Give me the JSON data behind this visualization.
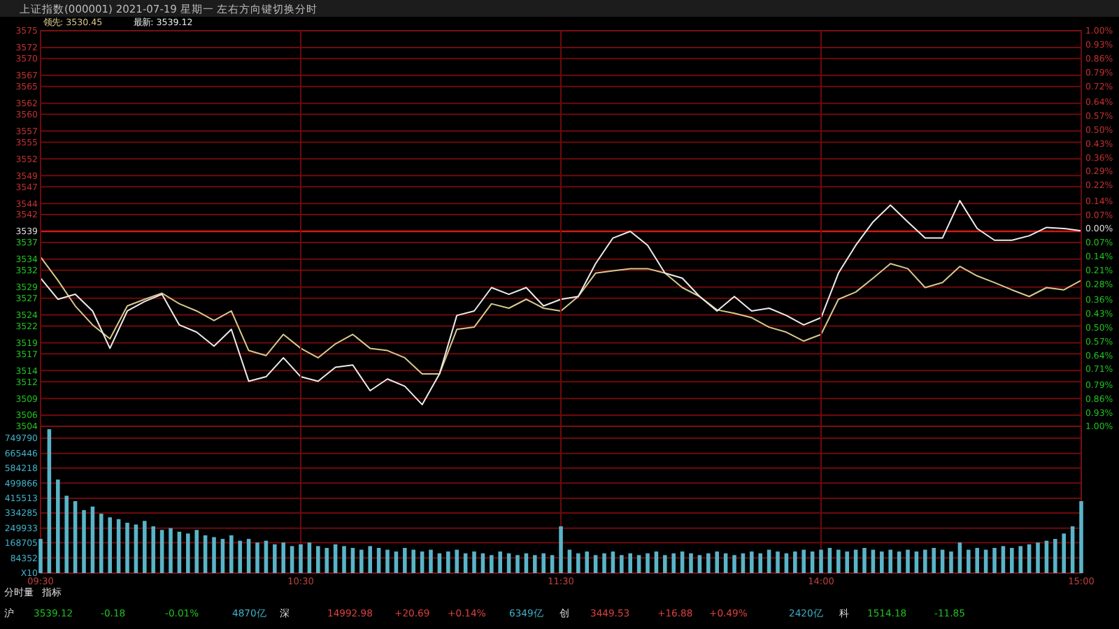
{
  "chart_data": [
    {
      "type": "line",
      "title": "上证指数(000001) 2021-07-19 星期一    左右方向键切换分时",
      "grid": true,
      "categories": [
        null,
        null,
        null,
        null,
        null,
        null,
        null,
        null,
        null,
        null,
        null,
        null,
        null,
        null,
        null,
        null,
        null,
        null,
        null,
        null,
        null,
        null,
        null,
        null,
        null,
        null,
        null,
        null,
        null,
        null,
        null,
        null,
        null,
        null,
        null,
        null,
        null,
        null,
        null,
        null,
        null,
        null,
        null,
        null,
        null,
        null,
        null,
        null,
        null,
        null,
        null,
        null,
        null,
        null,
        null,
        null,
        null,
        null,
        null,
        null,
        null
      ],
      "ylim": [
        3504,
        3575
      ],
      "yticks": [
        3504,
        3506,
        3509,
        3512,
        3514,
        3517,
        3519,
        3522,
        3524,
        3527,
        3529,
        3532,
        3534,
        3537,
        3539,
        3542,
        3544,
        3547,
        3549,
        3552,
        3555,
        3557,
        3560,
        3562,
        3565,
        3567,
        3570,
        3572,
        3575
      ],
      "y2lim": [
        -1,
        1
      ],
      "y2ticks": [
        {
          "value": -1,
          "label": "1.00%"
        },
        {
          "value": -0.93,
          "label": "0.93%"
        },
        {
          "value": -0.86,
          "label": "0.86%"
        },
        {
          "value": -0.79,
          "label": "0.79%"
        },
        {
          "value": -0.71,
          "label": "0.71%"
        },
        {
          "value": -0.64,
          "label": "0.64%"
        },
        {
          "value": -0.57,
          "label": "0.57%"
        },
        {
          "value": -0.5,
          "label": "0.50%"
        },
        {
          "value": -0.43,
          "label": "0.43%"
        },
        {
          "value": -0.36,
          "label": "0.36%"
        },
        {
          "value": -0.28,
          "label": "0.28%"
        },
        {
          "value": -0.21,
          "label": "0.21%"
        },
        {
          "value": -0.14,
          "label": "0.14%"
        },
        {
          "value": -0.07,
          "label": "0.07%"
        },
        {
          "value": 0,
          "label": "0.00%"
        },
        {
          "value": 0.07,
          "label": "0.07%"
        },
        {
          "value": 0.14,
          "label": "0.14%"
        },
        {
          "value": 0.22,
          "label": "0.22%"
        },
        {
          "value": 0.29,
          "label": "0.29%"
        },
        {
          "value": 0.36,
          "label": "0.36%"
        },
        {
          "value": 0.43,
          "label": "0.43%"
        },
        {
          "value": 0.5,
          "label": "0.50%"
        },
        {
          "value": 0.57,
          "label": "0.57%"
        },
        {
          "value": 0.64,
          "label": "0.64%"
        },
        {
          "value": 0.72,
          "label": "0.72%"
        },
        {
          "value": 0.79,
          "label": "0.79%"
        },
        {
          "value": 0.86,
          "label": "0.86%"
        },
        {
          "value": 0.93,
          "label": "0.93%"
        },
        {
          "value": 1,
          "label": "1.00%"
        }
      ],
      "ref_lines": [
        {
          "axis": "y",
          "value": 3539,
          "color": "#d01818"
        }
      ],
      "series": [
        {
          "name": "领先: 3530.45",
          "color": "#d8c88c",
          "values": [
            3534.4,
            3530.2,
            3525.6,
            3522.2,
            3519.7,
            3525.6,
            3526.8,
            3527.9,
            3526.0,
            3524.7,
            3523.0,
            3524.7,
            3517.6,
            3516.7,
            3520.5,
            3518.0,
            3516.3,
            3518.8,
            3520.5,
            3518.0,
            3517.6,
            3516.3,
            3513.4,
            3513.4,
            3521.4,
            3521.8,
            3526.0,
            3525.2,
            3526.8,
            3525.2,
            3524.7,
            3527.3,
            3531.5,
            3531.9,
            3532.3,
            3532.3,
            3531.5,
            3528.9,
            3527.3,
            3524.9,
            3524.3,
            3523.5,
            3521.8,
            3520.9,
            3519.3,
            3520.5,
            3526.8,
            3528.1,
            3530.6,
            3533.2,
            3532.3,
            3528.9,
            3529.8,
            3532.7,
            3531.0,
            3529.8,
            3528.5,
            3527.3,
            3528.9,
            3528.5,
            3530.2
          ]
        },
        {
          "name": "最新: 3539.12",
          "color": "#ececec",
          "values": [
            3530.6,
            3526.8,
            3527.7,
            3524.7,
            3518.0,
            3524.7,
            3526.4,
            3527.7,
            3522.2,
            3520.9,
            3518.4,
            3521.4,
            3512.1,
            3512.9,
            3516.3,
            3512.9,
            3512.1,
            3514.6,
            3515.0,
            3510.4,
            3512.5,
            3511.2,
            3507.9,
            3513.4,
            3523.9,
            3524.7,
            3528.9,
            3527.7,
            3528.9,
            3525.6,
            3526.8,
            3527.3,
            3533.2,
            3537.8,
            3539.0,
            3536.5,
            3531.5,
            3530.6,
            3527.3,
            3524.7,
            3527.3,
            3524.7,
            3525.2,
            3523.9,
            3522.2,
            3523.5,
            3531.5,
            3536.5,
            3540.7,
            3543.7,
            3540.7,
            3537.8,
            3537.8,
            3544.5,
            3539.5,
            3537.4,
            3537.4,
            3538.2,
            3539.7,
            3539.5,
            3539.1
          ]
        }
      ]
    },
    {
      "type": "bar",
      "grid": true,
      "color": "#5ab4c8",
      "categories": [
        "09:30",
        null,
        null,
        null,
        null,
        null,
        null,
        null,
        null,
        null,
        null,
        null,
        null,
        null,
        null,
        null,
        null,
        null,
        null,
        null,
        null,
        null,
        null,
        null,
        null,
        null,
        null,
        null,
        null,
        null,
        "10:30",
        null,
        null,
        null,
        null,
        null,
        null,
        null,
        null,
        null,
        null,
        null,
        null,
        null,
        null,
        null,
        null,
        null,
        null,
        null,
        null,
        null,
        null,
        null,
        null,
        null,
        null,
        null,
        null,
        null,
        "11:30",
        null,
        null,
        null,
        null,
        null,
        null,
        null,
        null,
        null,
        null,
        null,
        null,
        null,
        null,
        null,
        null,
        null,
        null,
        null,
        null,
        null,
        null,
        null,
        null,
        null,
        null,
        null,
        null,
        null,
        "14:00",
        null,
        null,
        null,
        null,
        null,
        null,
        null,
        null,
        null,
        null,
        null,
        null,
        null,
        null,
        null,
        null,
        null,
        null,
        null,
        null,
        null,
        null,
        null,
        null,
        null,
        null,
        null,
        null,
        null,
        "15:00"
      ],
      "ylim": [
        0,
        816000
      ],
      "yticks": [
        {
          "value": 0,
          "label": "X10"
        },
        84352,
        168705,
        249933,
        334285,
        415513,
        499866,
        584218,
        665446,
        749790
      ],
      "values": [
        190000,
        800000,
        520000,
        430000,
        400000,
        350000,
        370000,
        330000,
        310000,
        300000,
        280000,
        270000,
        290000,
        260000,
        240000,
        250000,
        230000,
        220000,
        240000,
        210000,
        200000,
        190000,
        210000,
        180000,
        190000,
        170000,
        180000,
        160000,
        170000,
        150000,
        160000,
        170000,
        150000,
        140000,
        160000,
        150000,
        140000,
        130000,
        150000,
        140000,
        130000,
        120000,
        140000,
        130000,
        120000,
        130000,
        110000,
        120000,
        130000,
        110000,
        120000,
        110000,
        100000,
        120000,
        110000,
        100000,
        110000,
        100000,
        110000,
        100000,
        260000,
        130000,
        110000,
        120000,
        100000,
        110000,
        120000,
        100000,
        110000,
        100000,
        110000,
        120000,
        100000,
        110000,
        120000,
        110000,
        100000,
        110000,
        120000,
        110000,
        100000,
        110000,
        120000,
        110000,
        130000,
        120000,
        110000,
        120000,
        130000,
        120000,
        130000,
        140000,
        130000,
        120000,
        130000,
        140000,
        130000,
        120000,
        130000,
        120000,
        130000,
        120000,
        130000,
        140000,
        130000,
        120000,
        170000,
        130000,
        140000,
        130000,
        140000,
        150000,
        140000,
        150000,
        160000,
        170000,
        180000,
        190000,
        220000,
        260000,
        400000
      ],
      "annotations": [
        "分时量",
        "指标",
        "沪",
        "3539.12",
        "-0.18",
        "-0.01%",
        "4870亿",
        "深",
        "14992.98",
        "+20.69",
        "+0.14%",
        "6349亿",
        "创",
        "3449.53",
        "+16.88",
        "+0.49%",
        "2420亿",
        "科",
        "1514.18",
        "-11.85"
      ]
    }
  ]
}
